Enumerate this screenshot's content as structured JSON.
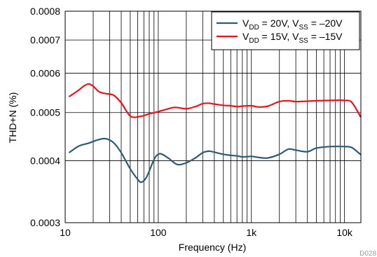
{
  "chart_data": {
    "type": "line",
    "title": "",
    "xlabel": "Frequency (Hz)",
    "ylabel": "THD+N (%)",
    "x_scale": "log",
    "y_scale": "log",
    "xlim": [
      10,
      15000
    ],
    "ylim": [
      0.0003,
      0.0008
    ],
    "grid": true,
    "legend_position": "top-right",
    "x_tick_labels": [
      {
        "value": 10,
        "label": "10"
      },
      {
        "value": 100,
        "label": "100"
      },
      {
        "value": 1000,
        "label": "1k"
      },
      {
        "value": 10000,
        "label": "10k"
      }
    ],
    "y_tick_labels": [
      {
        "value": 0.0003,
        "label": "0.0003"
      },
      {
        "value": 0.0004,
        "label": "0.0004"
      },
      {
        "value": 0.0005,
        "label": "0.0005"
      },
      {
        "value": 0.0006,
        "label": "0.0006"
      },
      {
        "value": 0.0007,
        "label": "0.0007"
      },
      {
        "value": 0.0008,
        "label": "0.0008"
      }
    ],
    "series": [
      {
        "name_parts": [
          "V",
          "DD",
          " = 20V, V",
          "SS",
          " = –20V"
        ],
        "color": "#2e5a73",
        "x": [
          11,
          14,
          18,
          22,
          27,
          33,
          40,
          50,
          60,
          66,
          75,
          90,
          100,
          110,
          130,
          160,
          200,
          250,
          300,
          350,
          400,
          500,
          600,
          700,
          800,
          1000,
          1200,
          1500,
          2000,
          2500,
          3000,
          4000,
          5000,
          7000,
          10000,
          12000,
          15000
        ],
        "y": [
          0.000415,
          0.000428,
          0.000434,
          0.00044,
          0.000443,
          0.000435,
          0.000415,
          0.000385,
          0.000367,
          0.000362,
          0.000371,
          0.000402,
          0.000412,
          0.000412,
          0.000404,
          0.000393,
          0.000396,
          0.000405,
          0.000415,
          0.000418,
          0.000416,
          0.000412,
          0.00041,
          0.000409,
          0.000407,
          0.000408,
          0.000406,
          0.000405,
          0.000412,
          0.000422,
          0.00042,
          0.000417,
          0.000424,
          0.000427,
          0.000427,
          0.000425,
          0.000411
        ]
      },
      {
        "name_parts": [
          "V",
          "DD",
          " = 15V, V",
          "SS",
          " = –15V"
        ],
        "color": "#e8141c",
        "x": [
          11,
          14,
          16,
          18,
          20,
          23,
          27,
          33,
          40,
          45,
          50,
          55,
          60,
          70,
          80,
          100,
          120,
          150,
          200,
          250,
          300,
          350,
          400,
          500,
          600,
          700,
          800,
          1000,
          1200,
          1500,
          2000,
          2500,
          3000,
          4000,
          5000,
          7000,
          10000,
          12000,
          15000
        ],
        "y": [
          0.000538,
          0.000555,
          0.000566,
          0.000571,
          0.000565,
          0.000551,
          0.000546,
          0.000542,
          0.000523,
          0.000505,
          0.000492,
          0.000489,
          0.00049,
          0.000493,
          0.000497,
          0.000502,
          0.000507,
          0.000512,
          0.000509,
          0.000514,
          0.000521,
          0.000522,
          0.00052,
          0.000517,
          0.000516,
          0.000514,
          0.000515,
          0.000516,
          0.000513,
          0.000515,
          0.000526,
          0.000528,
          0.000526,
          0.000527,
          0.000528,
          0.000529,
          0.000529,
          0.000524,
          0.000489
        ]
      }
    ]
  },
  "figure_id": "D028"
}
